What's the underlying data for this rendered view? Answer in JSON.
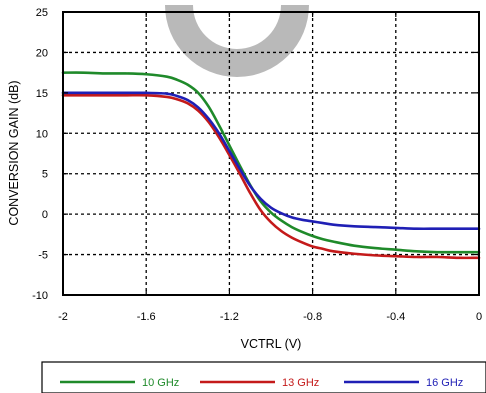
{
  "chart_data": {
    "type": "line",
    "title": "",
    "xlabel": "VCTRL (V)",
    "ylabel": "CONVERSION GAIN (dB)",
    "xlim": [
      -2,
      0
    ],
    "ylim": [
      -10,
      25
    ],
    "x_ticks": [
      -2,
      -1.6,
      -1.2,
      -0.8,
      -0.4,
      0
    ],
    "x_tick_labels": [
      "-2",
      "-1.6",
      "-1.2",
      "-0.8",
      "-0.4",
      "0"
    ],
    "y_ticks": [
      -10,
      -5,
      0,
      5,
      10,
      15,
      20,
      25
    ],
    "y_tick_labels": [
      "-10",
      "-5",
      "0",
      "5",
      "10",
      "15",
      "20",
      "25"
    ],
    "grid": true,
    "legend_position": "bottom",
    "watermark_color": "#b5b5b5",
    "series": [
      {
        "name": "10 GHz",
        "color": "#1f8a2a",
        "x": [
          -2.0,
          -1.9,
          -1.8,
          -1.7,
          -1.6,
          -1.5,
          -1.45,
          -1.4,
          -1.35,
          -1.3,
          -1.25,
          -1.2,
          -1.15,
          -1.1,
          -1.05,
          -1.0,
          -0.95,
          -0.9,
          -0.85,
          -0.8,
          -0.75,
          -0.7,
          -0.6,
          -0.5,
          -0.4,
          -0.3,
          -0.2,
          -0.1,
          0.0
        ],
        "values": [
          17.5,
          17.5,
          17.4,
          17.4,
          17.3,
          17.0,
          16.6,
          16.0,
          15.0,
          13.3,
          11.0,
          8.5,
          6.0,
          3.6,
          1.6,
          0.2,
          -0.8,
          -1.6,
          -2.2,
          -2.7,
          -3.1,
          -3.4,
          -3.9,
          -4.2,
          -4.4,
          -4.6,
          -4.7,
          -4.7,
          -4.7
        ]
      },
      {
        "name": "13 GHz",
        "color": "#c41a1a",
        "x": [
          -2.0,
          -1.9,
          -1.8,
          -1.7,
          -1.6,
          -1.5,
          -1.45,
          -1.4,
          -1.35,
          -1.3,
          -1.25,
          -1.2,
          -1.15,
          -1.1,
          -1.05,
          -1.0,
          -0.95,
          -0.9,
          -0.85,
          -0.8,
          -0.75,
          -0.7,
          -0.6,
          -0.5,
          -0.4,
          -0.3,
          -0.2,
          -0.1,
          0.0
        ],
        "values": [
          14.7,
          14.7,
          14.7,
          14.7,
          14.7,
          14.5,
          14.2,
          13.7,
          12.8,
          11.4,
          9.5,
          7.3,
          5.0,
          2.6,
          0.5,
          -1.0,
          -2.1,
          -2.9,
          -3.5,
          -4.0,
          -4.3,
          -4.6,
          -4.9,
          -5.1,
          -5.2,
          -5.3,
          -5.3,
          -5.4,
          -5.4
        ]
      },
      {
        "name": "16 GHz",
        "color": "#1f1fb5",
        "x": [
          -2.0,
          -1.9,
          -1.8,
          -1.7,
          -1.6,
          -1.5,
          -1.45,
          -1.4,
          -1.35,
          -1.3,
          -1.25,
          -1.2,
          -1.15,
          -1.1,
          -1.05,
          -1.0,
          -0.95,
          -0.9,
          -0.85,
          -0.8,
          -0.75,
          -0.7,
          -0.6,
          -0.5,
          -0.4,
          -0.3,
          -0.2,
          -0.1,
          0.0
        ],
        "values": [
          15.0,
          15.0,
          15.0,
          15.0,
          15.0,
          14.9,
          14.6,
          14.1,
          13.2,
          11.8,
          10.0,
          7.8,
          5.6,
          3.5,
          1.9,
          0.8,
          0.1,
          -0.4,
          -0.7,
          -0.9,
          -1.1,
          -1.3,
          -1.5,
          -1.6,
          -1.7,
          -1.8,
          -1.8,
          -1.8,
          -1.8
        ]
      }
    ]
  }
}
